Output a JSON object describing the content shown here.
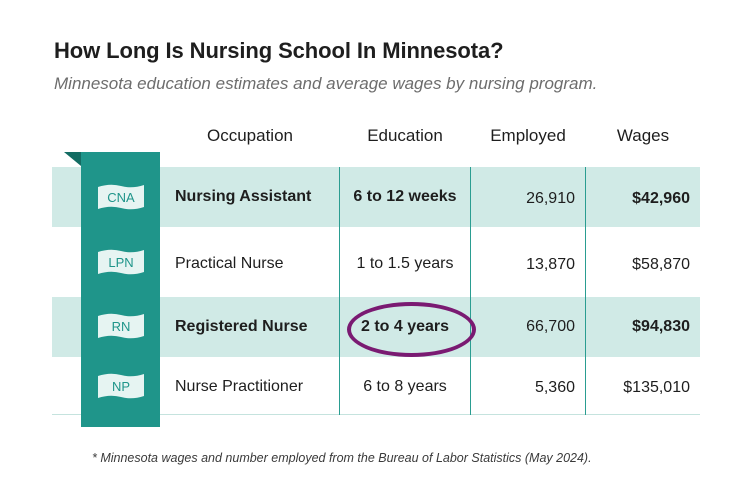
{
  "title": "How Long Is Nursing School In Minnesota?",
  "subtitle": "Minnesota education estimates and average wages by nursing program.",
  "headers": {
    "occupation": "Occupation",
    "education": "Education",
    "employed": "Employed",
    "wages": "Wages"
  },
  "rows": [
    {
      "badge": "CNA",
      "occupation": "Nursing Assistant",
      "education": "6 to 12 weeks",
      "employed": "26,910",
      "wages": "$42,960"
    },
    {
      "badge": "LPN",
      "occupation": "Practical Nurse",
      "education": "1 to 1.5 years",
      "employed": "13,870",
      "wages": "$58,870"
    },
    {
      "badge": "RN",
      "occupation": "Registered Nurse",
      "education": "2 to 4 years",
      "employed": "66,700",
      "wages": "$94,830"
    },
    {
      "badge": "NP",
      "occupation": "Nurse Practitioner",
      "education": "6 to 8 years",
      "employed": "5,360",
      "wages": "$135,010"
    }
  ],
  "highlighted_row": "RN",
  "footnote": "* Minnesota wages and number employed from the Bureau of Labor Statistics (May 2024).",
  "colors": {
    "teal": "#1f958a",
    "shade": "#d0eae6",
    "highlight_circle": "#7a1a72"
  }
}
